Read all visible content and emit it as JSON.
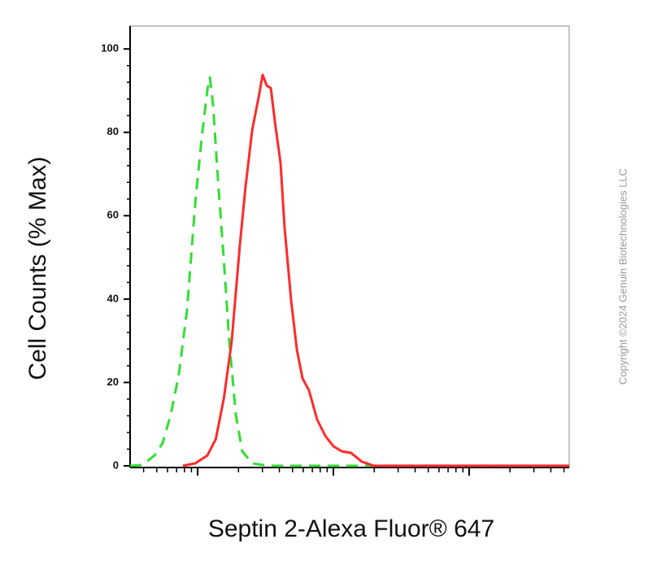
{
  "chart_data": {
    "type": "line",
    "xlabel": "Septin 2-Alexa Fluor® 647",
    "ylabel": "Cell Counts (% Max)",
    "annotation": "Copyright ©2024 Genuin Biotechnologies LLC",
    "xlog": true,
    "xlim": [
      3.18,
      5460
    ],
    "xticks": [
      10,
      100,
      1000
    ],
    "ylim": [
      -0.4,
      105.5
    ],
    "yticks": [
      0,
      20,
      40,
      60,
      80,
      100
    ],
    "series": [
      {
        "color": "#33dd33",
        "dashed": true,
        "x": [
          3.18,
          3.92,
          4.82,
          5.53,
          6.34,
          7.28,
          8.36,
          9.6,
          10.7,
          11.8,
          12.3,
          13.0,
          14.1,
          15.6,
          17.1,
          19.1,
          21.3,
          25.2,
          33.2,
          174,
          5460
        ],
        "values": [
          0,
          0.2,
          2.5,
          5.5,
          12.3,
          22.0,
          37.6,
          63.0,
          78.6,
          90.3,
          93.2,
          86.4,
          68.8,
          49.3,
          29.8,
          12.3,
          3.5,
          0.6,
          0,
          0,
          0
        ]
      },
      {
        "color": "#ff2a2a",
        "dashed": false,
        "x": [
          7.8,
          9.6,
          11.8,
          13.6,
          15.6,
          17.8,
          20.5,
          22.5,
          25.2,
          28.1,
          30.1,
          32.3,
          34.6,
          37.1,
          40.8,
          43.7,
          48.9,
          53.8,
          59.2,
          66.1,
          75.9,
          87.1,
          100,
          115,
          135,
          162,
          199,
          5460
        ],
        "values": [
          0,
          0.6,
          2.5,
          6.4,
          16.2,
          29.8,
          53.2,
          66.8,
          80.5,
          88.3,
          93.8,
          91.2,
          90.6,
          82.5,
          72.7,
          57.1,
          39.6,
          27.9,
          21.0,
          18.1,
          11.1,
          7.2,
          4.7,
          3.5,
          3.1,
          1.0,
          0,
          0
        ]
      }
    ]
  }
}
